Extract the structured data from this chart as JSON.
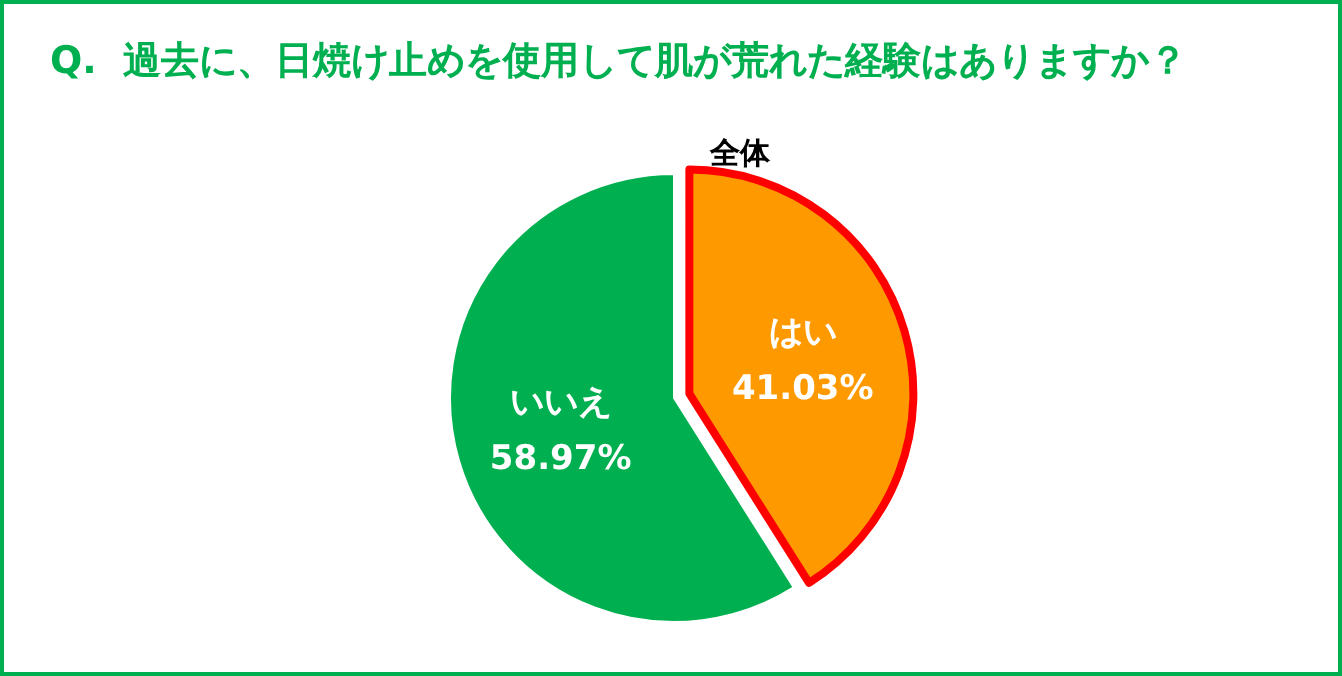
{
  "chart_data": {
    "type": "pie",
    "title": "Q.  過去に、日焼け止めを使用して肌が荒れた経験はありますか？",
    "subtitle": "全体",
    "categories": [
      "はい",
      "いいえ"
    ],
    "values": [
      41.03,
      58.97
    ],
    "colors": [
      "#ff9900",
      "#00b050"
    ],
    "value_labels": [
      "41.03%",
      "58.97%"
    ],
    "legend": false
  }
}
